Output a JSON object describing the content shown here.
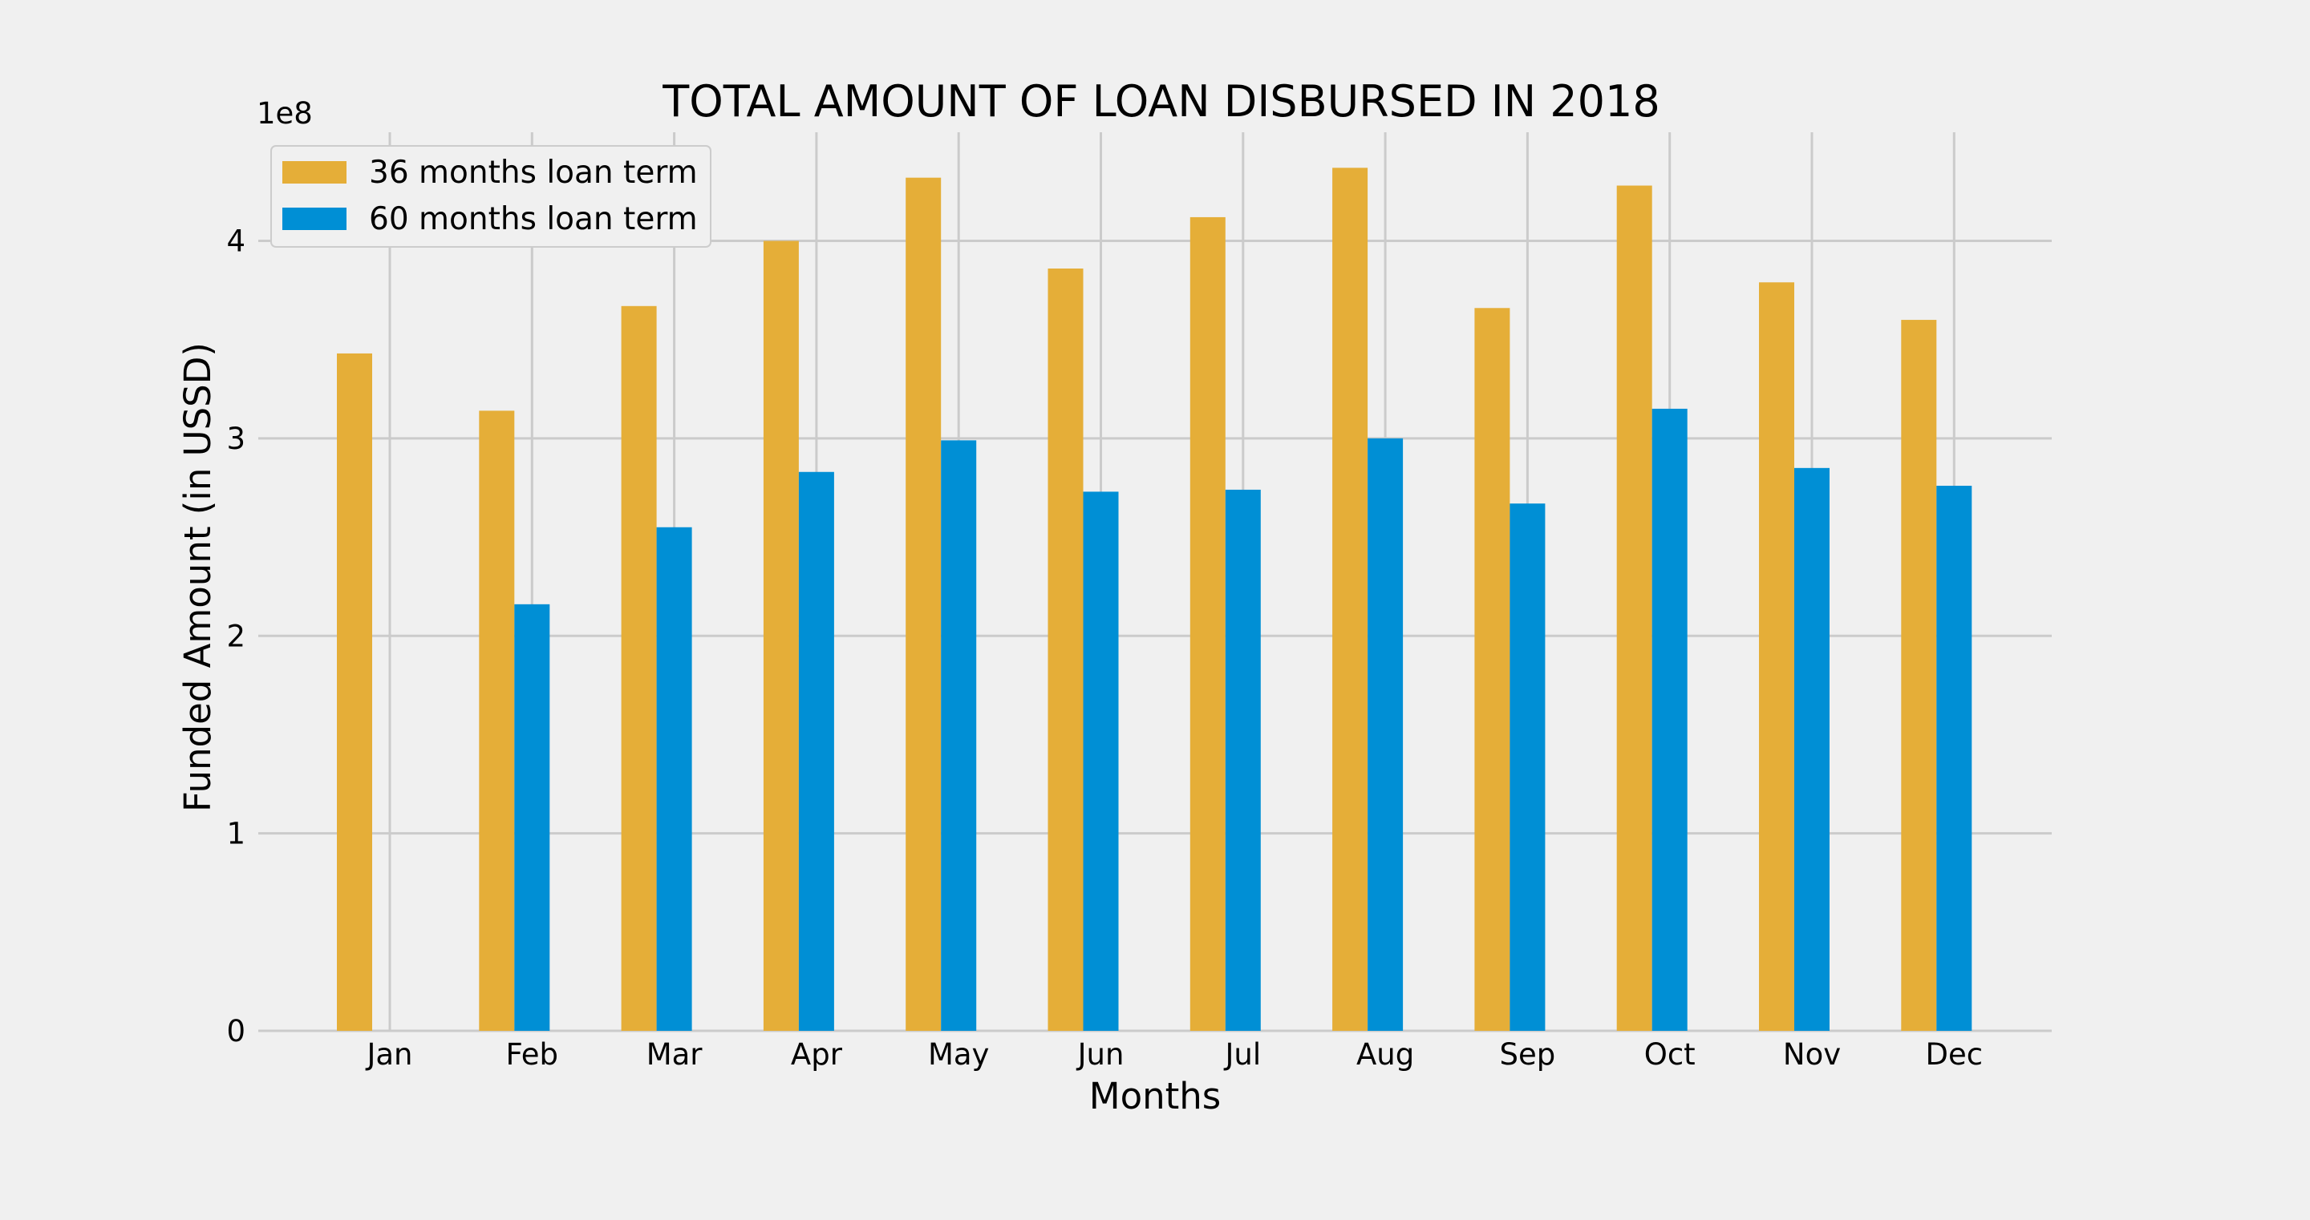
{
  "chart_data": {
    "type": "bar",
    "title": "TOTAL AMOUNT OF LOAN DISBURSED IN 2018",
    "xlabel": "Months",
    "ylabel": "Funded Amount (in USSD)",
    "y_offset_label": "1e8",
    "categories": [
      "Jan",
      "Feb",
      "Mar",
      "Apr",
      "May",
      "Jun",
      "Jul",
      "Aug",
      "Sep",
      "Oct",
      "Nov",
      "Dec"
    ],
    "series": [
      {
        "name": "36 months loan term",
        "color": "#e5ae38",
        "values": [
          3.43,
          3.14,
          3.67,
          4.0,
          4.32,
          3.86,
          4.12,
          4.37,
          3.66,
          4.28,
          3.79,
          3.6
        ]
      },
      {
        "name": "60 months loan term",
        "color": "#008fd5",
        "values": [
          0,
          2.16,
          2.55,
          2.83,
          2.99,
          2.73,
          2.74,
          3.0,
          2.67,
          3.15,
          2.85,
          2.76
        ]
      }
    ],
    "ylim": [
      0,
      4.55
    ],
    "yticks": [
      0,
      1,
      2,
      3,
      4
    ],
    "grid": true,
    "legend_position": "top-left"
  }
}
